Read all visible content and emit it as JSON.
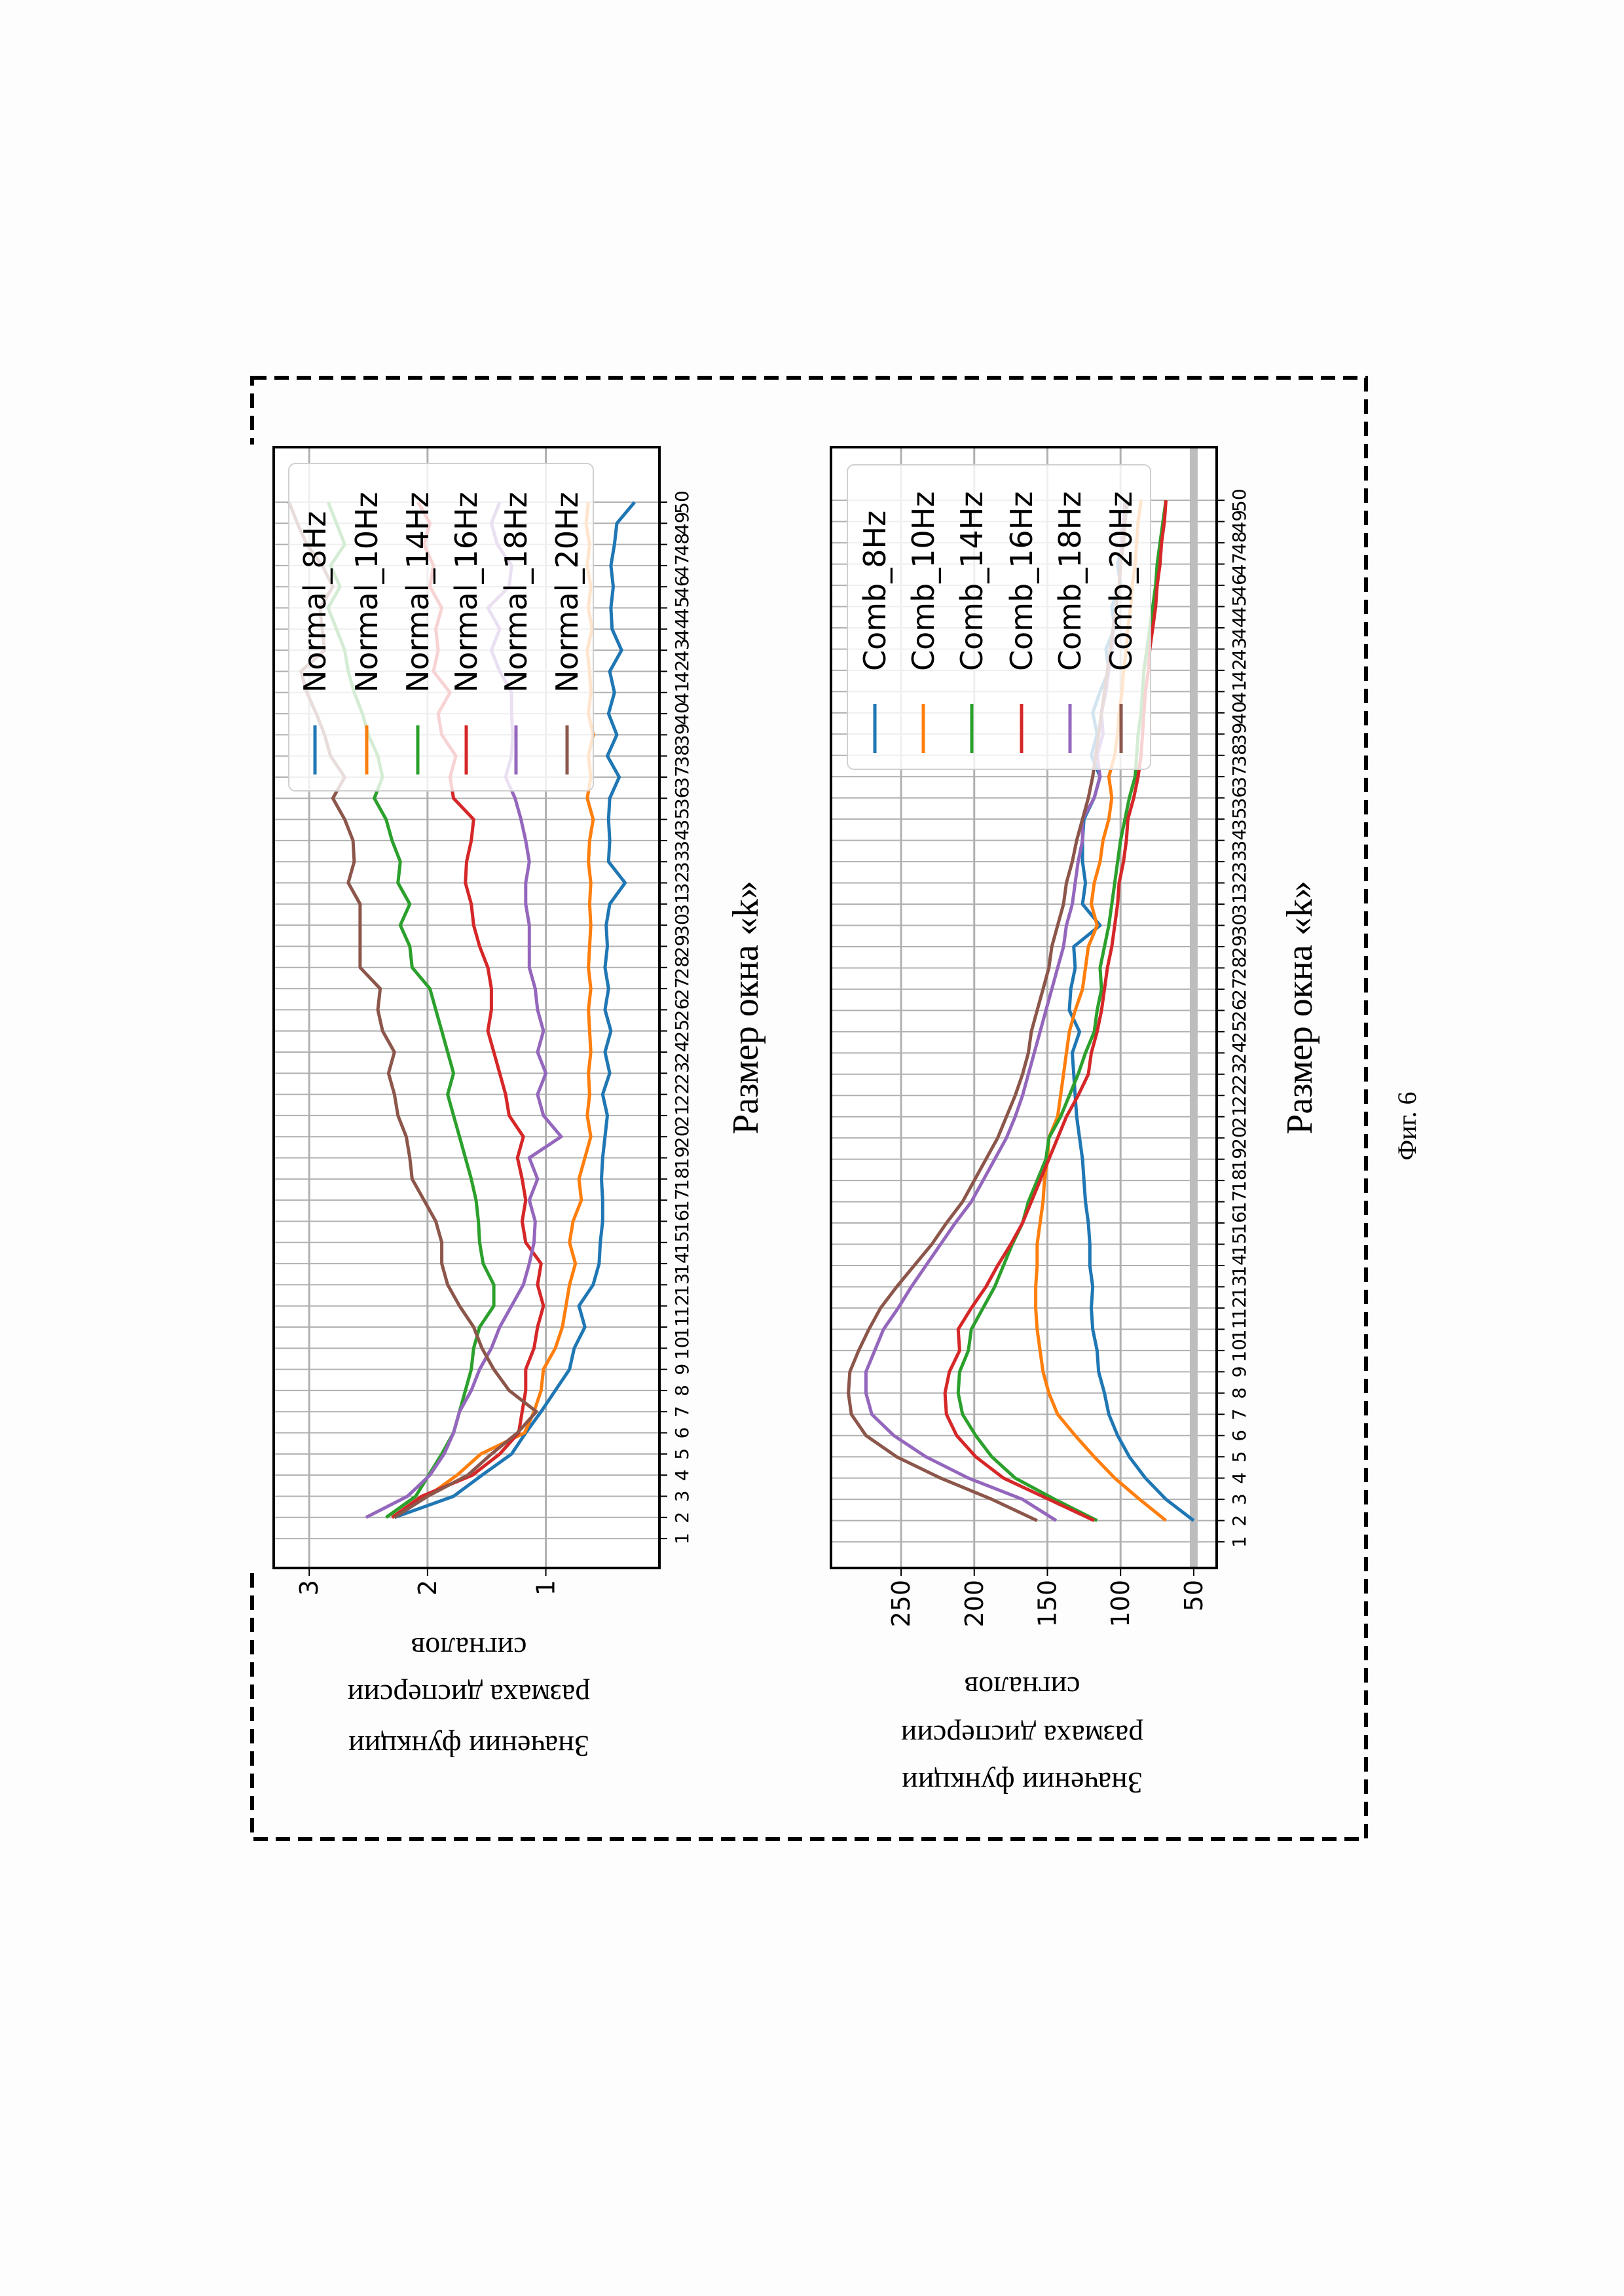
{
  "figure_caption": "Фиг. 6",
  "colors": {
    "c0": "#1f77b4",
    "c1": "#ff7f0e",
    "c2": "#2ca02c",
    "c3": "#d62728",
    "c4": "#9467bd",
    "c5": "#8c564b"
  },
  "chart_data": [
    {
      "type": "line",
      "title": "",
      "xlabel": "Размер окна «k»",
      "ylabel_lines": [
        "Значении функции",
        "размаха дисперсии",
        "сигналов"
      ],
      "x_ticks": [
        1,
        2,
        3,
        4,
        5,
        6,
        7,
        8,
        9,
        10,
        11,
        12,
        13,
        14,
        15,
        16,
        17,
        18,
        19,
        20,
        21,
        22,
        23,
        24,
        25,
        26,
        27,
        28,
        29,
        30,
        31,
        32,
        33,
        34,
        35,
        36,
        37,
        38,
        39,
        40,
        41,
        42,
        43,
        44,
        45,
        46,
        47,
        48,
        49,
        50
      ],
      "y_ticks": [
        1,
        2,
        3
      ],
      "xlim": [
        -0.39,
        52.6
      ],
      "ylim": [
        0.04,
        3.3
      ],
      "grid": true,
      "legend_position": "top-right",
      "x_start": 2,
      "series": [
        {
          "name": "Normal_8Hz",
          "color": "#1f77b4",
          "values": [
            2.28,
            1.78,
            1.54,
            1.29,
            1.17,
            1.04,
            0.92,
            0.8,
            0.76,
            0.67,
            0.72,
            0.6,
            0.55,
            0.54,
            0.52,
            0.52,
            0.53,
            0.52,
            0.5,
            0.48,
            0.52,
            0.46,
            0.5,
            0.45,
            0.5,
            0.47,
            0.5,
            0.48,
            0.49,
            0.46,
            0.33,
            0.47,
            0.46,
            0.47,
            0.46,
            0.38,
            0.48,
            0.4,
            0.47,
            0.42,
            0.46,
            0.36,
            0.44,
            0.45,
            0.43,
            0.45,
            0.42,
            0.4,
            0.25
          ]
        },
        {
          "name": "Normal_10Hz",
          "color": "#ff7f0e",
          "values": [
            2.3,
            2.0,
            1.75,
            1.55,
            1.18,
            1.1,
            1.04,
            1.02,
            0.92,
            0.86,
            0.83,
            0.8,
            0.75,
            0.8,
            0.77,
            0.7,
            0.72,
            0.67,
            0.62,
            0.65,
            0.63,
            0.64,
            0.62,
            0.63,
            0.64,
            0.62,
            0.64,
            0.63,
            0.62,
            0.63,
            0.62,
            0.64,
            0.63,
            0.6,
            0.65,
            0.62,
            0.64,
            0.6,
            0.64,
            0.62,
            0.63,
            0.65,
            0.61,
            0.64,
            0.62,
            0.65,
            0.63,
            0.66,
            0.64
          ]
        },
        {
          "name": "Normal_14Hz",
          "color": "#2ca02c",
          "values": [
            2.35,
            2.1,
            1.99,
            1.88,
            1.78,
            1.73,
            1.68,
            1.63,
            1.61,
            1.56,
            1.44,
            1.44,
            1.53,
            1.56,
            1.57,
            1.59,
            1.63,
            1.68,
            1.73,
            1.78,
            1.83,
            1.78,
            1.83,
            1.88,
            1.93,
            1.98,
            2.13,
            2.15,
            2.23,
            2.15,
            2.25,
            2.23,
            2.3,
            2.35,
            2.45,
            2.38,
            2.42,
            2.5,
            2.55,
            2.62,
            2.67,
            2.7,
            2.77,
            2.84,
            2.74,
            2.82,
            2.7,
            2.77,
            2.84
          ]
        },
        {
          "name": "Normal_16Hz",
          "color": "#d62728",
          "values": [
            2.3,
            2.05,
            1.62,
            1.39,
            1.23,
            1.2,
            1.17,
            1.17,
            1.1,
            1.07,
            1.02,
            1.07,
            1.04,
            1.17,
            1.2,
            1.17,
            1.2,
            1.24,
            1.19,
            1.31,
            1.34,
            1.39,
            1.44,
            1.49,
            1.46,
            1.46,
            1.49,
            1.56,
            1.61,
            1.63,
            1.68,
            1.67,
            1.63,
            1.61,
            1.78,
            1.81,
            1.76,
            1.88,
            1.91,
            1.81,
            1.95,
            1.91,
            1.93,
            1.88,
            1.98,
            1.95,
            2.03,
            1.98,
            2.08
          ]
        },
        {
          "name": "Normal_18Hz",
          "color": "#9467bd",
          "values": [
            2.52,
            2.17,
            1.98,
            1.86,
            1.78,
            1.73,
            1.63,
            1.56,
            1.46,
            1.39,
            1.29,
            1.19,
            1.14,
            1.1,
            1.09,
            1.14,
            1.07,
            1.14,
            0.87,
            1.02,
            1.07,
            1.0,
            1.07,
            1.02,
            1.07,
            1.09,
            1.14,
            1.14,
            1.14,
            1.17,
            1.17,
            1.14,
            1.17,
            1.21,
            1.26,
            1.34,
            1.29,
            1.28,
            1.29,
            1.29,
            1.39,
            1.46,
            1.39,
            1.49,
            1.31,
            1.29,
            1.41,
            1.46,
            1.39
          ]
        },
        {
          "name": "Normal_20Hz",
          "color": "#8c564b",
          "values": [
            2.28,
            2.0,
            1.66,
            1.46,
            1.24,
            1.08,
            1.31,
            1.44,
            1.54,
            1.61,
            1.73,
            1.83,
            1.88,
            1.88,
            1.93,
            2.03,
            2.13,
            2.15,
            2.18,
            2.25,
            2.28,
            2.33,
            2.28,
            2.38,
            2.42,
            2.4,
            2.57,
            2.57,
            2.57,
            2.57,
            2.67,
            2.62,
            2.63,
            2.7,
            2.8,
            2.7,
            2.82,
            2.87,
            2.94,
            3.02,
            3.07,
            2.87,
            2.89,
            2.91,
            2.8,
            2.89,
            3.02,
            3.1,
            3.17
          ]
        }
      ]
    },
    {
      "type": "line",
      "title": "",
      "xlabel": "Размер окна «k»",
      "ylabel_lines": [
        "Значении функции",
        "размаха дисперсии",
        "сигналов"
      ],
      "x_ticks": [
        1,
        2,
        3,
        4,
        5,
        6,
        7,
        8,
        9,
        10,
        11,
        12,
        13,
        14,
        15,
        16,
        17,
        18,
        19,
        20,
        21,
        22,
        23,
        24,
        25,
        26,
        27,
        28,
        29,
        30,
        31,
        32,
        33,
        34,
        35,
        36,
        37,
        38,
        39,
        40,
        41,
        42,
        43,
        44,
        45,
        46,
        47,
        48,
        49,
        50
      ],
      "y_ticks": [
        50,
        100,
        150,
        200,
        250
      ],
      "xlim": [
        -0.23,
        52.5
      ],
      "ylim": [
        34.3,
        297.9
      ],
      "grid": true,
      "hline": 50,
      "legend_position": "top-right",
      "x_start": 2,
      "series": [
        {
          "name": "Comb_8Hz",
          "color": "#1f77b4",
          "values": [
            50,
            69,
            83,
            94,
            102,
            108,
            111,
            115,
            116,
            119,
            120,
            119,
            121,
            121,
            122,
            124,
            125,
            126,
            128,
            130,
            131,
            132,
            133,
            128,
            135,
            134,
            131,
            132,
            114,
            126,
            124,
            126,
            126,
            125,
            118,
            114,
            120,
            116,
            119,
            114,
            108,
            110,
            104,
            106,
            100,
            102,
            98,
            97,
            95
          ]
        },
        {
          "name": "Comb_10Hz",
          "color": "#ff7f0e",
          "values": [
            69,
            87,
            104,
            118,
            131,
            143,
            149,
            153,
            155,
            157,
            158,
            158,
            157,
            157,
            155,
            153,
            152,
            150,
            149,
            143,
            141,
            139,
            137,
            135,
            131,
            126,
            124,
            122,
            116,
            120,
            118,
            114,
            112,
            108,
            106,
            108,
            104,
            102,
            101,
            99,
            98,
            96,
            95,
            93,
            92,
            90,
            89,
            88,
            86
          ]
        },
        {
          "name": "Comb_14Hz",
          "color": "#2ca02c",
          "values": [
            116,
            145,
            172,
            188,
            199,
            208,
            211,
            210,
            204,
            202,
            194,
            186,
            180,
            174,
            167,
            163,
            157,
            151,
            149,
            141,
            135,
            129,
            124,
            118,
            116,
            113,
            114,
            111,
            108,
            106,
            104,
            102,
            100,
            97,
            94,
            90,
            89,
            88,
            86,
            85,
            84,
            82,
            80,
            78,
            76,
            75,
            73,
            71,
            69
          ]
        },
        {
          "name": "Comb_16Hz",
          "color": "#d62728",
          "values": [
            118,
            149,
            180,
            199,
            212,
            219,
            220,
            217,
            210,
            211,
            202,
            192,
            184,
            175,
            167,
            161,
            155,
            149,
            143,
            137,
            129,
            122,
            120,
            116,
            113,
            111,
            109,
            106,
            104,
            102,
            101,
            98,
            96,
            95,
            91,
            88,
            86,
            85,
            84,
            83,
            81,
            80,
            78,
            76,
            75,
            73,
            72,
            70,
            69
          ]
        },
        {
          "name": "Comb_18Hz",
          "color": "#9467bd",
          "values": [
            144,
            167,
            204,
            233,
            255,
            270,
            274,
            274,
            268,
            262,
            252,
            243,
            233,
            223,
            213,
            202,
            194,
            186,
            178,
            172,
            167,
            163,
            159,
            155,
            151,
            147,
            143,
            139,
            137,
            133,
            131,
            129,
            126,
            126,
            118,
            114,
            116,
            112,
            113,
            110,
            108,
            106,
            105,
            103,
            101,
            100,
            99,
            98,
            97
          ]
        },
        {
          "name": "Comb_20Hz",
          "color": "#8c564b",
          "values": [
            157,
            188,
            223,
            253,
            274,
            284,
            286,
            285,
            279,
            272,
            264,
            253,
            241,
            229,
            219,
            208,
            200,
            192,
            184,
            178,
            172,
            167,
            163,
            161,
            157,
            153,
            149,
            147,
            143,
            139,
            137,
            133,
            130,
            126,
            122,
            119,
            117,
            115,
            113,
            111,
            109,
            107,
            105,
            103,
            101,
            100,
            98,
            97,
            96
          ]
        }
      ]
    }
  ]
}
